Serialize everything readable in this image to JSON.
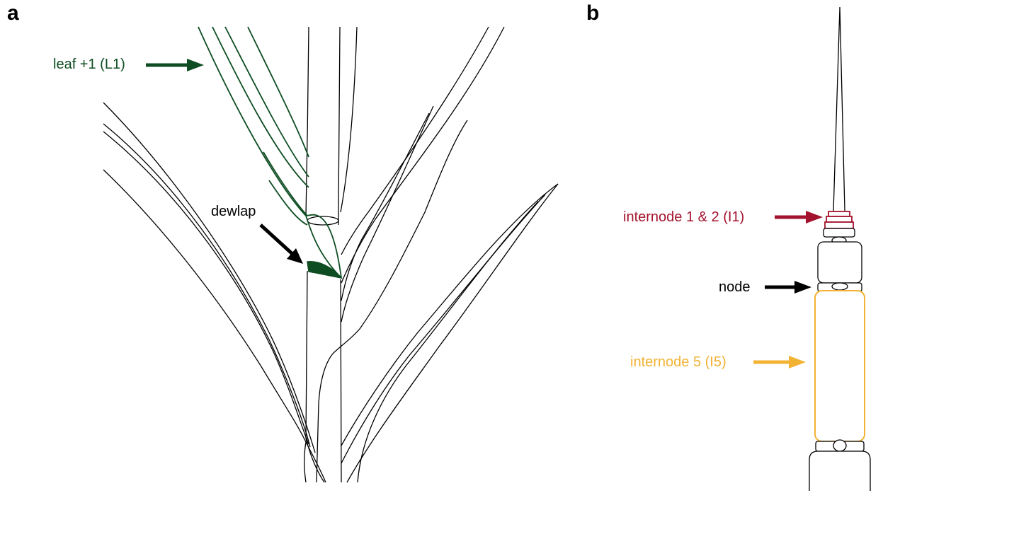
{
  "panels": {
    "a": {
      "letter": "a",
      "labels": {
        "leaf": "leaf +1 (L1)",
        "dewlap": "dewlap"
      }
    },
    "b": {
      "letter": "b",
      "labels": {
        "internode_top": "internode 1 & 2 (I1)",
        "node": "node",
        "internode_5": "internode 5 (I5)"
      }
    }
  },
  "colors": {
    "leaf_green": "#0e4d22",
    "internode_red": "#a3132e",
    "internode_yellow": "#f2b233",
    "outline": "#000000"
  }
}
